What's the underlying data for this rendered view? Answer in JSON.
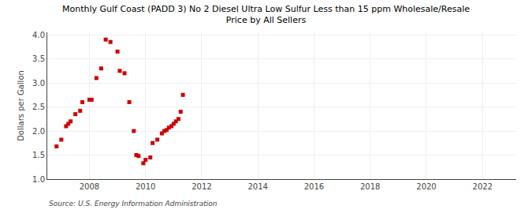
{
  "chart_data": {
    "type": "scatter",
    "title": "Monthly Gulf Coast (PADD 3) No 2 Diesel Ultra Low Sulfur Less than 15 ppm Wholesale/Resale\nPrice by All Sellers",
    "ylabel": "Dollars per Gallon",
    "source": "Source: U.S. Energy Information Administration",
    "color": "#cc0000",
    "marker": "square",
    "grid": true,
    "xlim": [
      2006.5,
      2023.2
    ],
    "ylim": [
      1.0,
      4.05
    ],
    "xticks": [
      2008,
      2010,
      2012,
      2014,
      2016,
      2018,
      2020,
      2022
    ],
    "yticks": [
      {
        "value": 1.0,
        "label": "1.0"
      },
      1.5,
      {
        "value": 2.0,
        "label": "2.0"
      },
      2.5,
      {
        "value": 3.0,
        "label": "3.0"
      },
      3.5,
      {
        "value": 4.0,
        "label": "4.0"
      }
    ],
    "x": [
      2006.83,
      2007.0,
      2007.17,
      2007.25,
      2007.33,
      2007.5,
      2007.67,
      2007.75,
      2008.0,
      2008.08,
      2008.25,
      2008.42,
      2008.58,
      2008.75,
      2009.0,
      2009.08,
      2009.25,
      2009.42,
      2009.58,
      2009.67,
      2009.75,
      2009.92,
      2010.0,
      2010.17,
      2010.25,
      2010.42,
      2010.58,
      2010.67,
      2010.75,
      2010.83,
      2010.92,
      2011.0,
      2011.08,
      2011.17,
      2011.25,
      2011.33
    ],
    "values": [
      1.68,
      1.82,
      2.1,
      2.15,
      2.2,
      2.35,
      2.42,
      2.6,
      2.65,
      2.65,
      3.1,
      3.3,
      3.9,
      3.85,
      3.65,
      3.25,
      3.2,
      2.6,
      2.0,
      1.5,
      1.48,
      1.33,
      1.4,
      1.45,
      1.75,
      1.82,
      1.95,
      2.0,
      2.02,
      2.07,
      2.1,
      2.15,
      2.2,
      2.25,
      2.4,
      2.75
    ]
  }
}
